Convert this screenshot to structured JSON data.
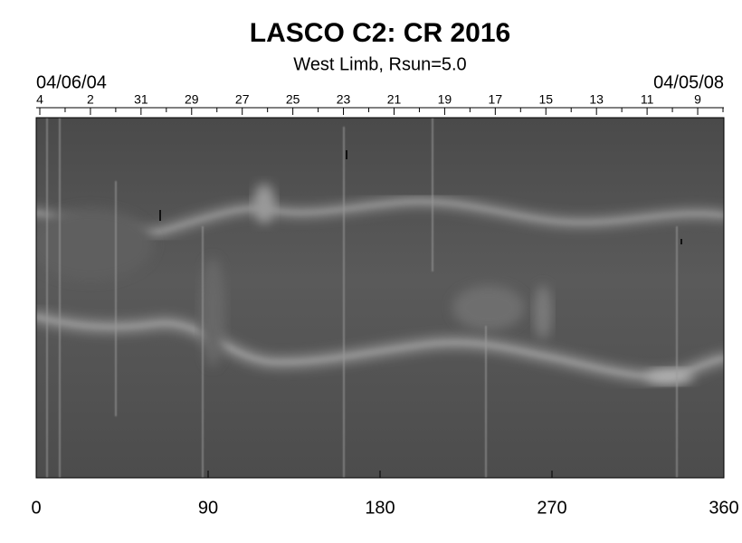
{
  "chart_data": {
    "type": "image",
    "title": "LASCO C2: CR 2016",
    "subtitle": "West Limb, Rsun=5.0",
    "start_date": "04/06/04",
    "end_date": "04/05/08",
    "xlim": [
      0,
      360
    ],
    "xticks": [
      0,
      90,
      180,
      270,
      360
    ],
    "top_categories": [
      "4",
      null,
      "2",
      null,
      "31",
      null,
      "29",
      null,
      "27",
      null,
      "25",
      null,
      "23",
      null,
      "21",
      null,
      "19",
      null,
      "17",
      null,
      "15",
      null,
      "13",
      null,
      "11",
      null,
      "9",
      null
    ]
  }
}
